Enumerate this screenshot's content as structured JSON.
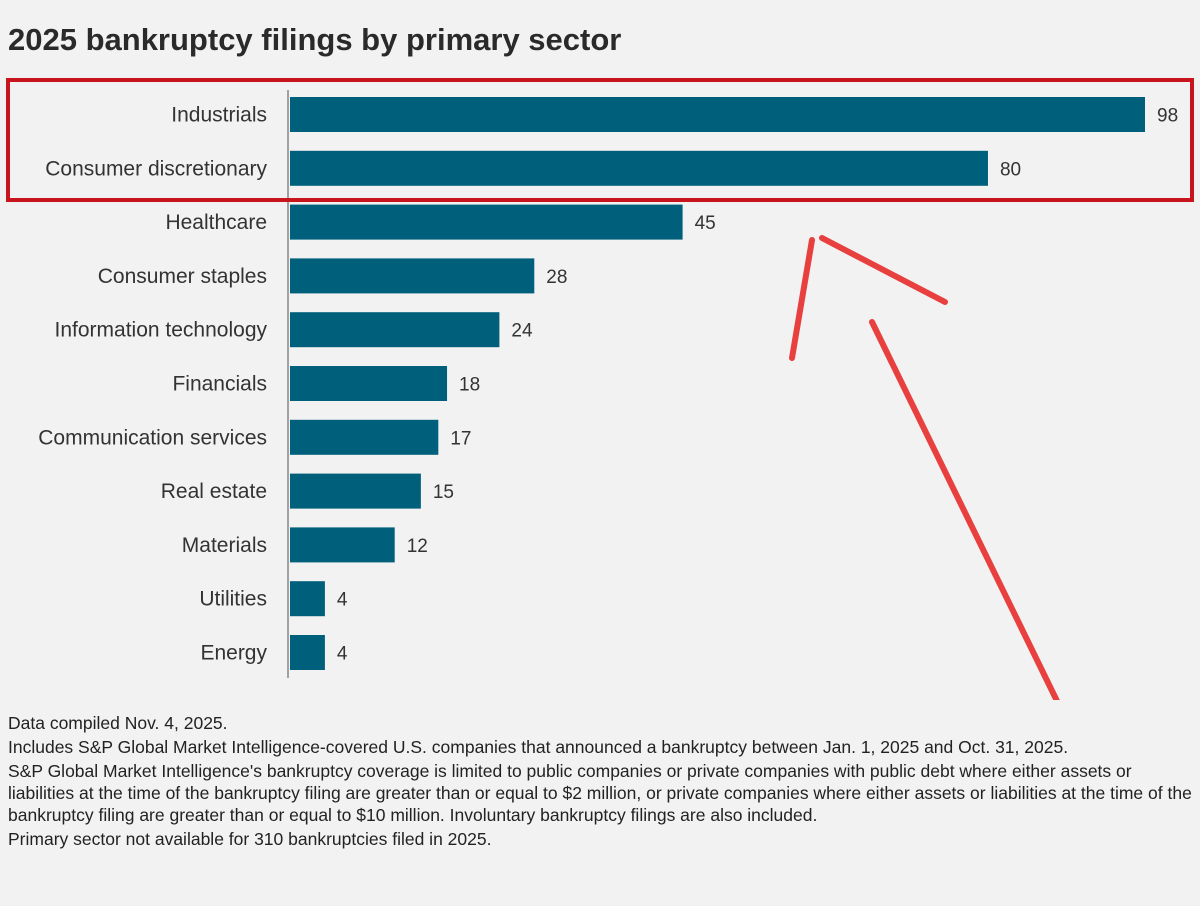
{
  "title": "2025 bankruptcy filings by primary sector",
  "chart_data": {
    "type": "bar",
    "orientation": "horizontal",
    "title": "2025 bankruptcy filings by primary sector",
    "categories": [
      "Industrials",
      "Consumer discretionary",
      "Healthcare",
      "Consumer staples",
      "Information technology",
      "Financials",
      "Communication services",
      "Real estate",
      "Materials",
      "Utilities",
      "Energy"
    ],
    "values": [
      98,
      80,
      45,
      28,
      24,
      18,
      17,
      15,
      12,
      4,
      4
    ],
    "xlim": [
      0,
      98
    ],
    "grid": false,
    "bar_color": "#005f7a",
    "highlight": {
      "categories": [
        "Industrials",
        "Consumer discretionary"
      ],
      "color": "#c8141c"
    },
    "annotation_arrow_color": "#e8403f"
  },
  "notes": [
    "Data compiled Nov. 4, 2025.",
    "Includes S&P Global Market Intelligence-covered U.S. companies that announced a bankruptcy between Jan. 1, 2025 and Oct. 31, 2025.",
    "S&P Global Market Intelligence's bankruptcy coverage is limited to public companies or private companies with public debt where either assets or liabilities at the time of the bankruptcy filing are greater than or equal to $2 million, or private companies where either assets or liabilities at the time of the bankruptcy filing are greater than or equal to $10 million. Involuntary bankruptcy filings are also included.",
    "Primary sector not available for 310 bankruptcies filed in 2025."
  ]
}
